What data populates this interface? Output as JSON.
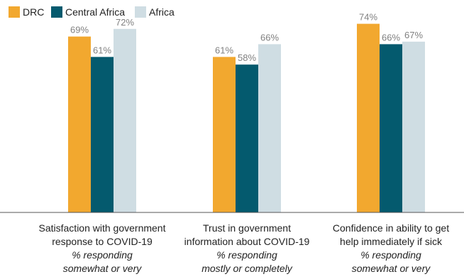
{
  "colors": {
    "DRC": "#F2A82F",
    "Central Africa": "#045A6E",
    "Africa": "#CFDDE3",
    "axis": "#555555",
    "value_text": "#808080"
  },
  "chart_data": {
    "type": "bar",
    "legend_position": "top-left",
    "grid": false,
    "ylim": [
      0,
      100
    ],
    "legend": [
      "DRC",
      "Central Africa",
      "Africa"
    ],
    "categories": [
      {
        "lines": [
          "Satisfaction with government",
          "response to COVID-19"
        ],
        "sublines": [
          "% responding",
          "somewhat or very"
        ]
      },
      {
        "lines": [
          "Trust in government",
          "information about COVID-19"
        ],
        "sublines": [
          "% responding",
          "mostly or completely"
        ]
      },
      {
        "lines": [
          "Confidence in ability to get",
          "help immediately if sick"
        ],
        "sublines": [
          "% responding",
          "somewhat or very"
        ]
      }
    ],
    "series": [
      {
        "name": "DRC",
        "values": [
          69,
          61,
          74
        ],
        "labels": [
          "69%",
          "61%",
          "74%"
        ]
      },
      {
        "name": "Central Africa",
        "values": [
          61,
          58,
          66
        ],
        "labels": [
          "61%",
          "58%",
          "66%"
        ]
      },
      {
        "name": "Africa",
        "values": [
          72,
          66,
          67
        ],
        "labels": [
          "72%",
          "66%",
          "67%"
        ]
      }
    ]
  }
}
